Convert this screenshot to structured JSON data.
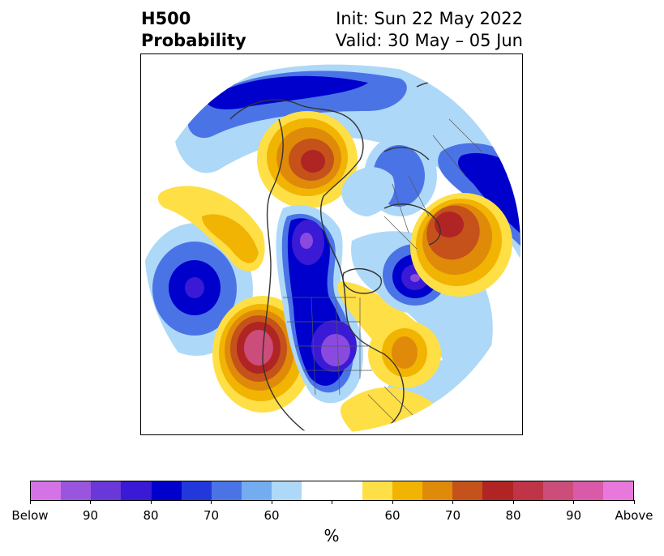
{
  "title": {
    "left_line1": "H500",
    "left_line2": "Probability",
    "right_line1": "Init: Sun 22 May 2022",
    "right_line2": "Valid: 30 May – 05 Jun"
  },
  "colorbar": {
    "units": "%",
    "tick_labels": [
      "Below",
      "90",
      "80",
      "70",
      "60",
      "60",
      "70",
      "80",
      "90",
      "Above"
    ],
    "colors": [
      "#d473e6",
      "#9a55de",
      "#6a38d8",
      "#3a1ad4",
      "#0000cd",
      "#2338dc",
      "#4a74e6",
      "#74acf0",
      "#aed8f8",
      "#ffffff",
      "#ffffff",
      "#ffdf46",
      "#f2b402",
      "#e08a0a",
      "#c4521a",
      "#b02424",
      "#c03448",
      "#cc4c7a",
      "#d85aa8",
      "#e878dc"
    ]
  },
  "map": {
    "projection": "polar-stereographic",
    "fill_colors": {
      "below_60": "#aed8f8",
      "below_70": "#4a74e6",
      "below_80": "#0000cd",
      "below_90": "#3a1ad4",
      "below_max": "#8a4ae0",
      "above_60": "#ffdf46",
      "above_70": "#f2b402",
      "above_80": "#e08a0a",
      "above_90": "#c4521a",
      "above_95": "#b02424",
      "above_max": "#cc4c7a"
    },
    "coastline_color": "#333333"
  }
}
